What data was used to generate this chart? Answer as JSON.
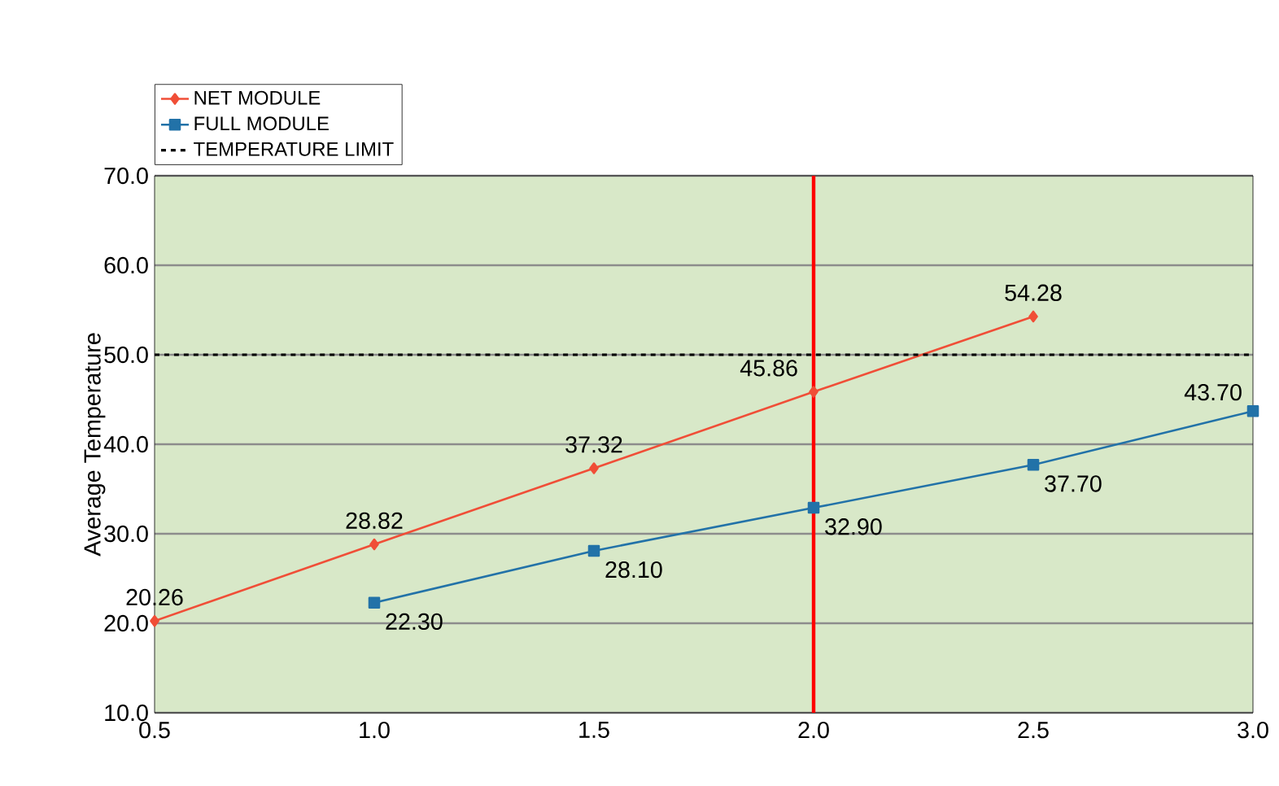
{
  "chart_data": {
    "type": "line",
    "ylabel": "Average Temperature",
    "series": [
      {
        "name": "NET MODULE",
        "color": "#f04e37",
        "marker": "diamond",
        "x": [
          0.5,
          1.0,
          1.5,
          2.0,
          2.5
        ],
        "values": [
          20.26,
          28.82,
          37.32,
          45.86,
          54.28
        ],
        "value_labels": [
          "20.26",
          "28.82",
          "37.32",
          "45.86",
          "54.28"
        ]
      },
      {
        "name": "FULL MODULE",
        "color": "#2272a8",
        "marker": "square",
        "x": [
          1.0,
          1.5,
          2.0,
          2.5,
          3.0
        ],
        "values": [
          22.3,
          28.1,
          32.9,
          37.7,
          43.7
        ],
        "value_labels": [
          "22.30",
          "28.10",
          "32.90",
          "37.70",
          "43.70"
        ]
      }
    ],
    "xlim": [
      0.5,
      3.0
    ],
    "ylim": [
      10,
      70
    ],
    "xticks": [
      0.5,
      {
        "value": 1.0,
        "label": "1.0"
      },
      1.5,
      {
        "value": 2.0,
        "label": "2.0"
      },
      2.5,
      {
        "value": 3.0,
        "label": "3.0"
      }
    ],
    "yticks": [
      {
        "value": 10,
        "label": "10.0"
      },
      {
        "value": 20,
        "label": "20.0"
      },
      {
        "value": 30,
        "label": "30.0"
      },
      {
        "value": 40,
        "label": "40.0"
      },
      {
        "value": 50,
        "label": "50.0"
      },
      {
        "value": 60,
        "label": "60.0"
      },
      {
        "value": 70,
        "label": "70.0"
      }
    ],
    "ref_lines": [
      {
        "axis": "y",
        "value": 50,
        "label": "TEMPERATURE LIMIT",
        "color": "#000000",
        "line_style": "dashed"
      },
      {
        "axis": "x",
        "value": 2.0,
        "color": "#ff0000",
        "line_style": "solid"
      }
    ],
    "grid": "y",
    "legend": "top left",
    "line_style": "solid"
  }
}
